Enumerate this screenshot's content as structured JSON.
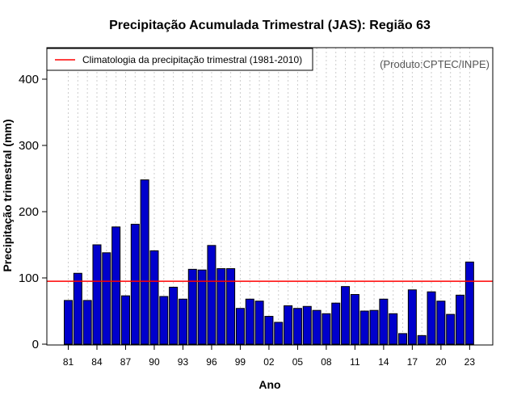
{
  "chart_data": {
    "type": "bar",
    "title": "Precipitação Acumulada Trimestral (JAS): Região 63",
    "xlabel": "Ano",
    "ylabel": "Precipitação trimestral (mm)",
    "source_note": "(Produto:CPTEC/INPE)",
    "legend": {
      "label": "Climatologia da precipitação trimestral (1981-2010)",
      "position": "top-left"
    },
    "climatology": 95,
    "ylim": [
      0,
      450
    ],
    "yticks": [
      0,
      100,
      200,
      300,
      400
    ],
    "categories": [
      1981,
      1982,
      1983,
      1984,
      1985,
      1986,
      1987,
      1988,
      1989,
      1990,
      1991,
      1992,
      1993,
      1994,
      1995,
      1996,
      1997,
      1998,
      1999,
      2000,
      2001,
      2002,
      2003,
      2004,
      2005,
      2006,
      2007,
      2008,
      2009,
      2010,
      2011,
      2012,
      2013,
      2014,
      2015,
      2016,
      2017,
      2018,
      2019,
      2020,
      2021,
      2022,
      2023
    ],
    "tick_years": [
      1981,
      1984,
      1987,
      1990,
      1993,
      1996,
      1999,
      2002,
      2005,
      2008,
      2011,
      2014,
      2017,
      2020,
      2023
    ],
    "tick_labels": [
      "81",
      "84",
      "87",
      "90",
      "93",
      "96",
      "99",
      "02",
      "05",
      "08",
      "11",
      "14",
      "17",
      "20",
      "23"
    ],
    "values": [
      66,
      107,
      66,
      150,
      138,
      177,
      73,
      181,
      248,
      141,
      72,
      86,
      68,
      113,
      112,
      149,
      114,
      114,
      54,
      68,
      65,
      42,
      33,
      58,
      54,
      57,
      51,
      46,
      62,
      87,
      75,
      50,
      51,
      68,
      46,
      16,
      82,
      13,
      79,
      65,
      45,
      74,
      124
    ],
    "colors": {
      "bar": "#0000cc",
      "bar_edge": "#000000",
      "climatology_line": "#ff0000",
      "grid": "#cccccc"
    }
  }
}
